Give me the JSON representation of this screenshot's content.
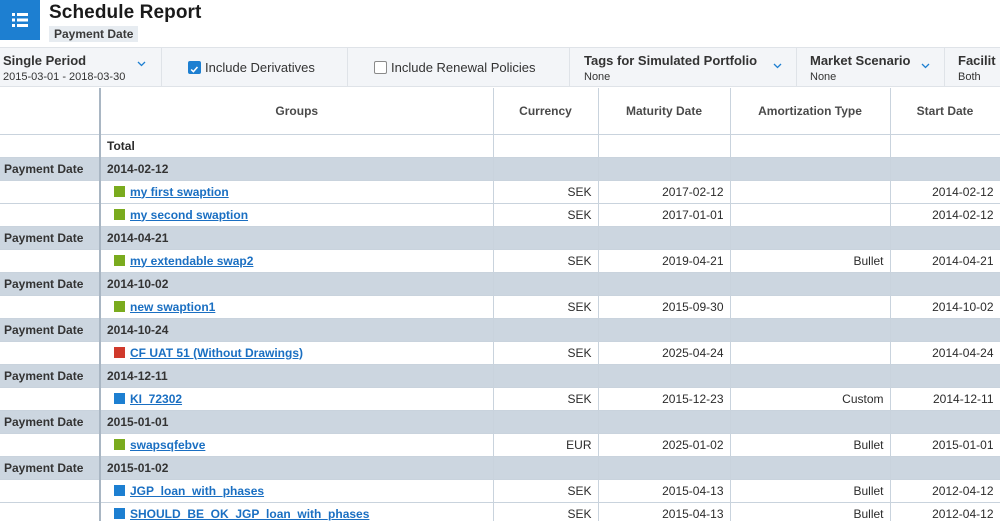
{
  "header": {
    "title": "Schedule Report",
    "subtitle": "Payment Date"
  },
  "filters": {
    "period": {
      "label": "Single Period",
      "value": "2015-03-01 - 2018-03-30"
    },
    "derivatives": {
      "label": "Include Derivatives",
      "checked": true
    },
    "renewal": {
      "label": "Include Renewal Policies",
      "checked": false
    },
    "tags": {
      "label": "Tags for Simulated Portfolio",
      "value": "None"
    },
    "scenario": {
      "label": "Market Scenario",
      "value": "None"
    },
    "facility": {
      "label": "Facilit",
      "value": "Both"
    }
  },
  "table": {
    "columns": [
      "",
      "Groups",
      "Currency",
      "Maturity Date",
      "Amortization Type",
      "Start Date"
    ],
    "total_label": "Total",
    "groups": [
      {
        "label": "Payment Date",
        "date": "2014-02-12",
        "rows": [
          {
            "name": "my first swaption",
            "color": "#7aab1e",
            "currency": "SEK",
            "maturity": "2017-02-12",
            "amortization": "",
            "start": "2014-02-12"
          },
          {
            "name": "my second swaption",
            "color": "#7aab1e",
            "currency": "SEK",
            "maturity": "2017-01-01",
            "amortization": "",
            "start": "2014-02-12"
          }
        ]
      },
      {
        "label": "Payment Date",
        "date": "2014-04-21",
        "rows": [
          {
            "name": "my extendable swap2",
            "color": "#7aab1e",
            "currency": "SEK",
            "maturity": "2019-04-21",
            "amortization": "Bullet",
            "start": "2014-04-21"
          }
        ]
      },
      {
        "label": "Payment Date",
        "date": "2014-10-02",
        "rows": [
          {
            "name": "new swaption1",
            "color": "#7aab1e",
            "currency": "SEK",
            "maturity": "2015-09-30",
            "amortization": "",
            "start": "2014-10-02"
          }
        ]
      },
      {
        "label": "Payment Date",
        "date": "2014-10-24",
        "rows": [
          {
            "name": "CF UAT 51 (Without Drawings)",
            "color": "#d0392b",
            "currency": "SEK",
            "maturity": "2025-04-24",
            "amortization": "",
            "start": "2014-04-24"
          }
        ]
      },
      {
        "label": "Payment Date",
        "date": "2014-12-11",
        "rows": [
          {
            "name": "KI_72302",
            "color": "#1d7fd1",
            "currency": "SEK",
            "maturity": "2015-12-23",
            "amortization": "Custom",
            "start": "2014-12-11"
          }
        ]
      },
      {
        "label": "Payment Date",
        "date": "2015-01-01",
        "rows": [
          {
            "name": "swapsqfebve",
            "color": "#7aab1e",
            "currency": "EUR",
            "maturity": "2025-01-02",
            "amortization": "Bullet",
            "start": "2015-01-01"
          }
        ]
      },
      {
        "label": "Payment Date",
        "date": "2015-01-02",
        "rows": [
          {
            "name": "JGP_loan_with_phases",
            "color": "#1d7fd1",
            "currency": "SEK",
            "maturity": "2015-04-13",
            "amortization": "Bullet",
            "start": "2012-04-12"
          },
          {
            "name": "SHOULD_BE_OK_JGP_loan_with_phases",
            "color": "#1d7fd1",
            "currency": "SEK",
            "maturity": "2015-04-13",
            "amortization": "Bullet",
            "start": "2012-04-12"
          }
        ]
      }
    ]
  }
}
